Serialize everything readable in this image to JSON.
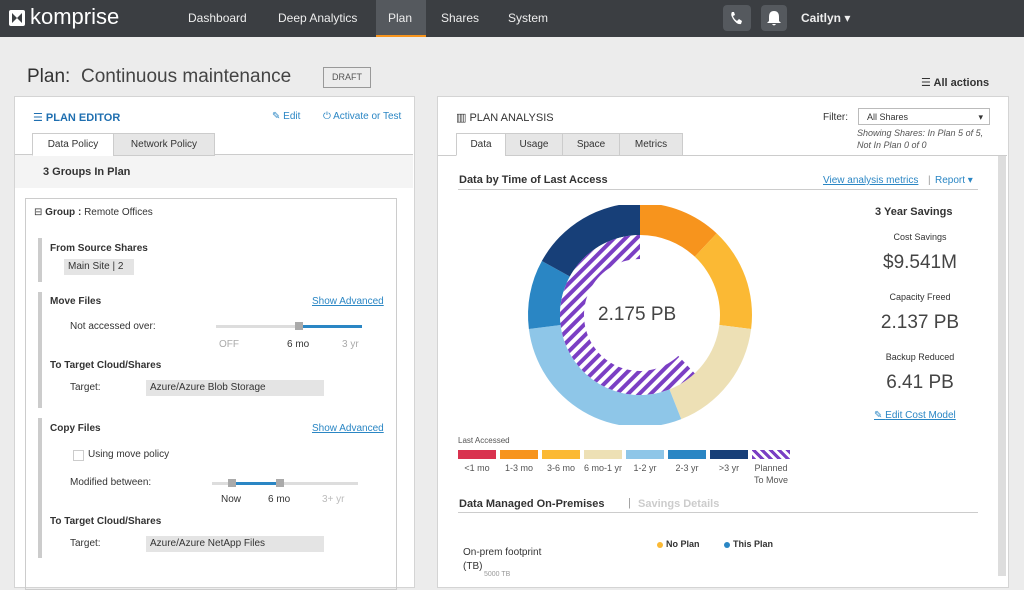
{
  "nav": {
    "logo": "komprise",
    "items": [
      "Dashboard",
      "Deep Analytics",
      "Plan",
      "Shares",
      "System"
    ],
    "active": 2,
    "user": "Caitlyn"
  },
  "header": {
    "label": "Plan:",
    "title": "Continuous maintenance",
    "badge": "DRAFT",
    "actions": "All actions"
  },
  "editor": {
    "title": "PLAN EDITOR",
    "edit": "Edit",
    "activate": "Activate or Test",
    "tabs": [
      "Data Policy",
      "Network Policy"
    ],
    "groups": "3 Groups In Plan",
    "group_label": "Group :",
    "group_name": "Remote Offices",
    "source": {
      "title": "From Source Shares",
      "value": "Main Site | 2"
    },
    "move": {
      "title": "Move Files",
      "advanced": "Show Advanced",
      "label": "Not accessed over:",
      "ticks": [
        "OFF",
        "6 mo",
        "3 yr"
      ],
      "target_title": "To Target Cloud/Shares",
      "target_label": "Target:",
      "target": "Azure/Azure Blob Storage"
    },
    "copy": {
      "title": "Copy Files",
      "advanced": "Show Advanced",
      "checkbox": "Using move policy",
      "label": "Modified between:",
      "ticks": [
        "Now",
        "6 mo",
        "3+ yr"
      ],
      "target_title": "To Target Cloud/Shares",
      "target_label": "Target:",
      "target": "Azure/Azure NetApp Files"
    }
  },
  "analysis": {
    "title": "PLAN ANALYSIS",
    "filter_label": "Filter:",
    "filter": "All Shares",
    "note": [
      "Showing Shares: In Plan 5 of 5,",
      "Not In Plan 0 of 0"
    ],
    "tabs": [
      "Data",
      "Usage",
      "Space",
      "Metrics"
    ],
    "section": "Data by Time of Last Access",
    "metrics_link": "View analysis metrics",
    "separator": "|",
    "report": "Report",
    "donut": {
      "center": "2.175 PB",
      "legend_title": "Last Accessed",
      "segments": [
        {
          "name": "<1 mo",
          "color": "#d9324f",
          "value": 0
        },
        {
          "name": "1-3 mo",
          "color": "#f7941d",
          "value": 12
        },
        {
          "name": "3-6 mo",
          "color": "#fbb934",
          "value": 15
        },
        {
          "name": "6 mo-1 yr",
          "color": "#ede0b5",
          "value": 17
        },
        {
          "name": "1-2 yr",
          "color": "#8ec6e8",
          "value": 29
        },
        {
          "name": "2-3 yr",
          "color": "#2a86c4",
          "value": 10
        },
        {
          "name": ">3 yr",
          "color": "#173f78",
          "value": 17
        }
      ],
      "planned": {
        "name": "Planned To Move",
        "color": "#7b3fc4",
        "value": 62
      }
    },
    "savings": {
      "title": "3 Year Savings",
      "items": [
        {
          "label": "Cost Savings",
          "value": "$9.541M"
        },
        {
          "label": "Capacity Freed",
          "value": "2.137 PB"
        },
        {
          "label": "Backup Reduced",
          "value": "6.41 PB"
        }
      ],
      "edit": "Edit Cost Model"
    },
    "onprem": {
      "title": "Data Managed On-Premises",
      "separator": "|",
      "link": "Savings Details",
      "row_label": "On-prem footprint (TB)",
      "legend": [
        {
          "name": "No Plan",
          "color": "#fbb934"
        },
        {
          "name": "This Plan",
          "color": "#2a86c4"
        }
      ],
      "axis": "5000 TB"
    }
  }
}
